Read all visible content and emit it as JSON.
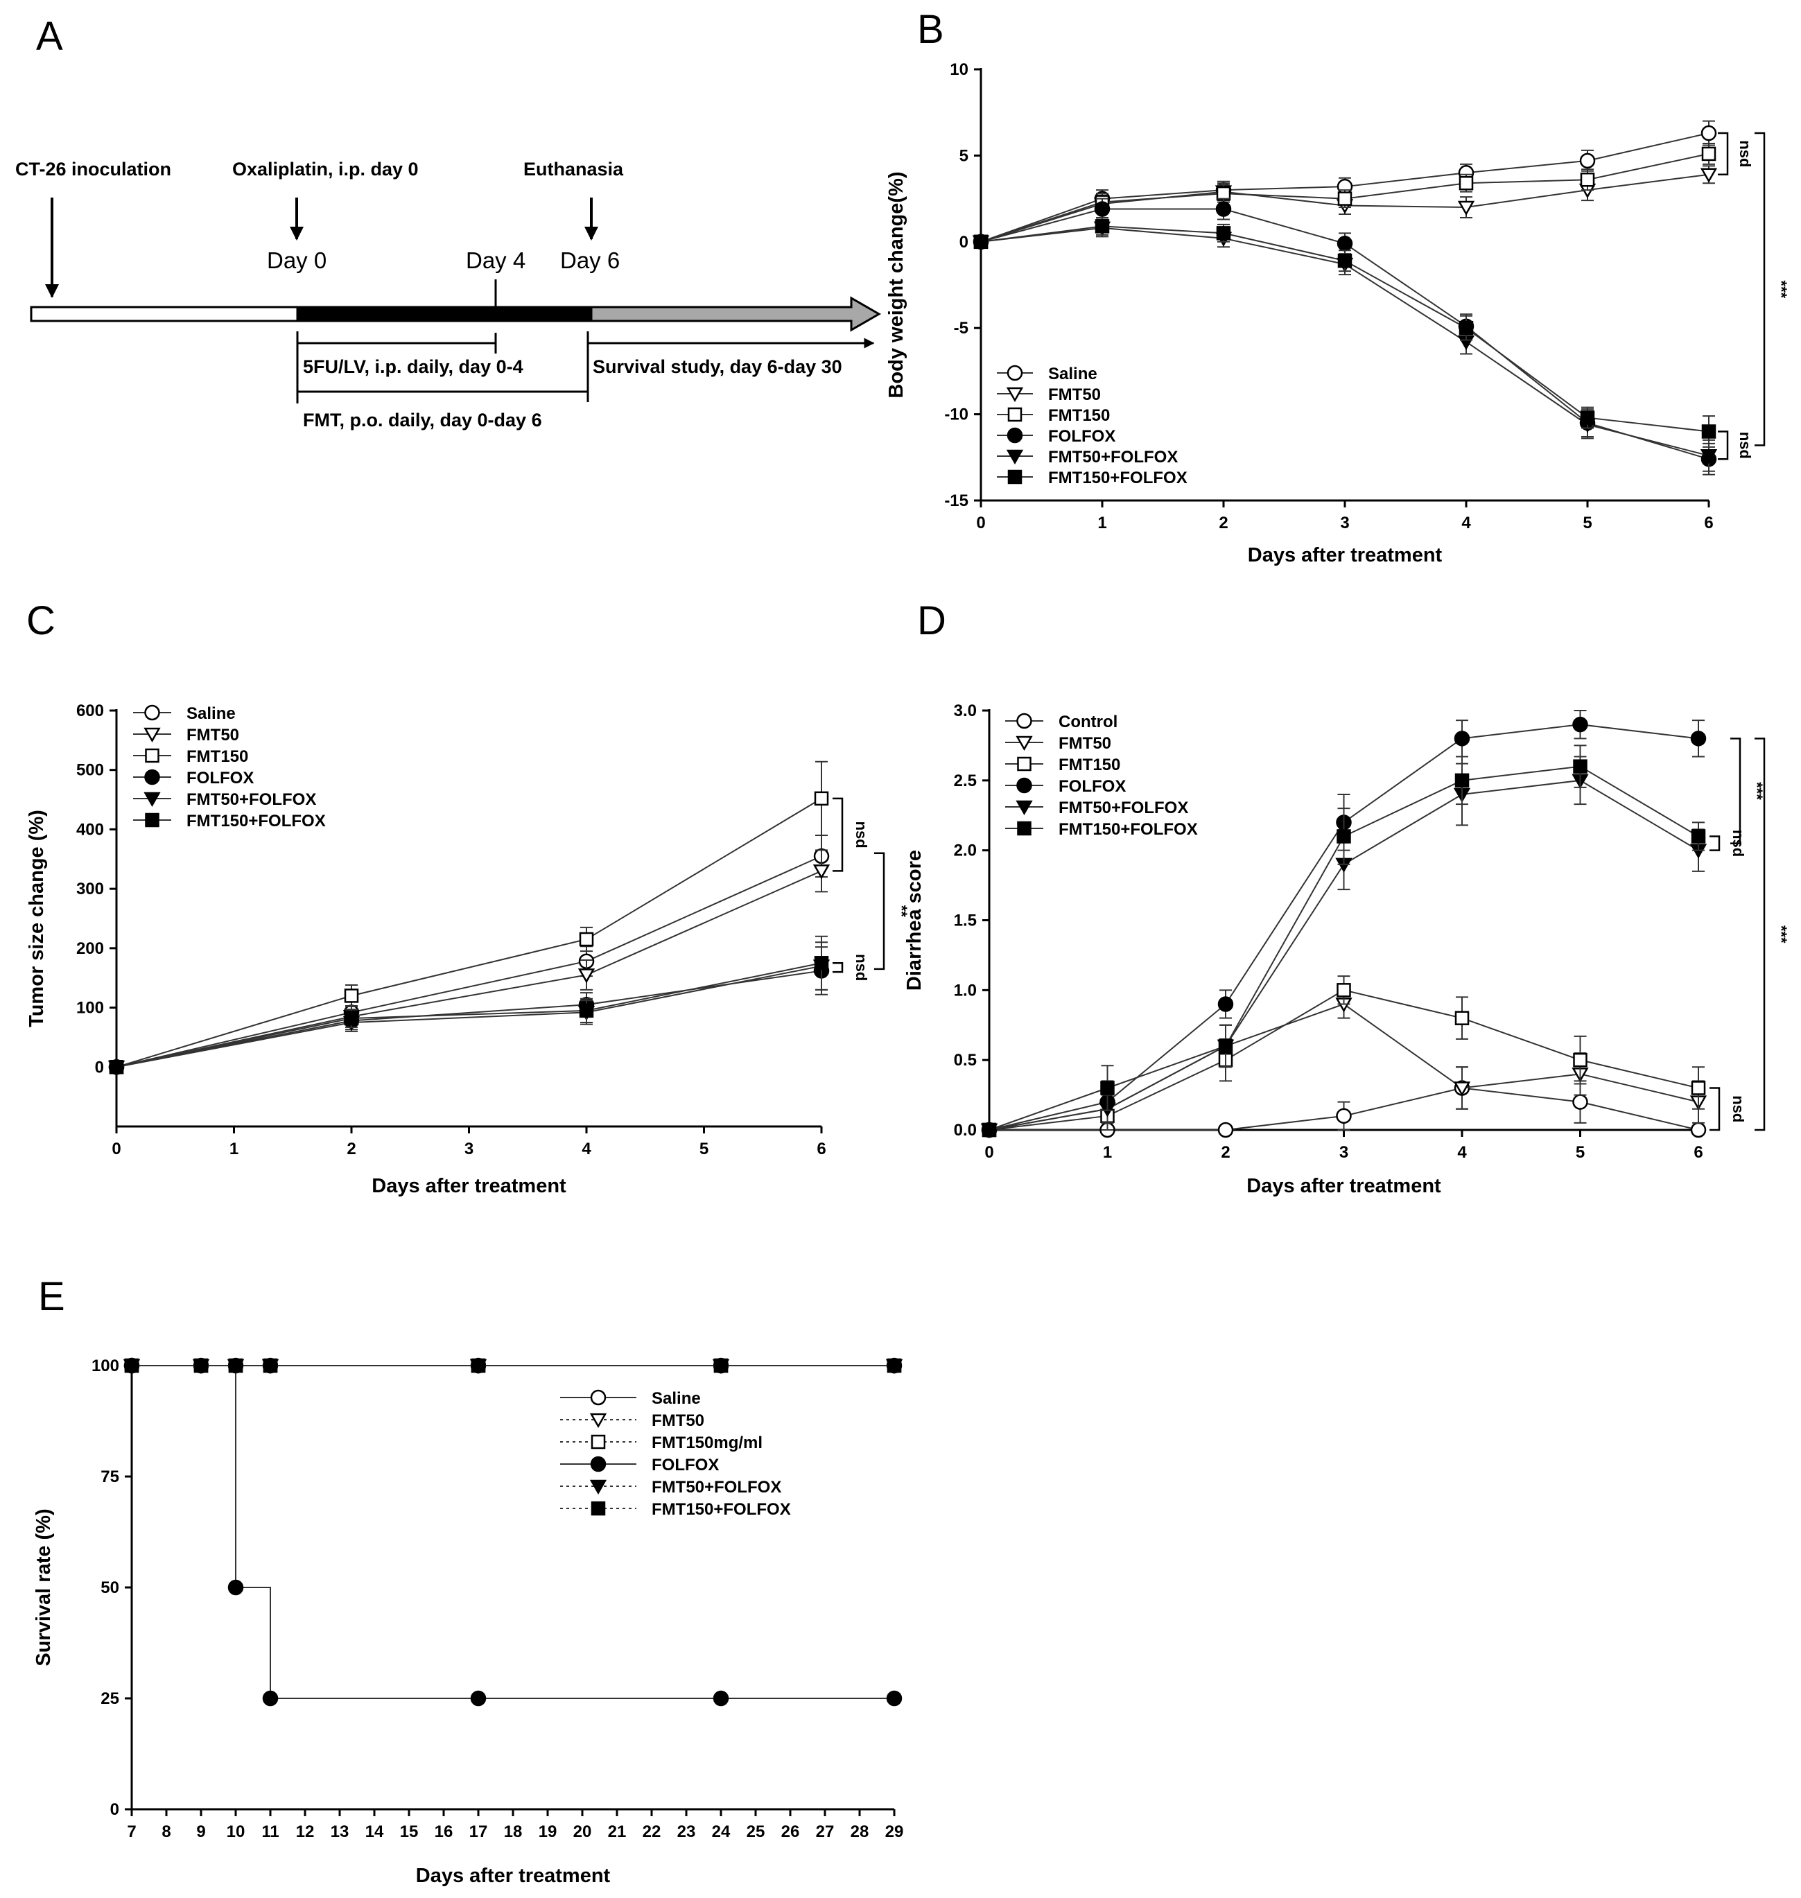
{
  "colors": {
    "ink": "#000000",
    "grey_arrow": "#a8a8a8",
    "paper": "#ffffff",
    "line": "#555555"
  },
  "panel_a": {
    "label": "A",
    "events": {
      "inoculation": "CT-26 inoculation",
      "oxaliplatin": "Oxaliplatin, i.p. day 0",
      "euthanasia": "Euthanasia"
    },
    "days": {
      "d0": "Day 0",
      "d4": "Day 4",
      "d6": "Day 6"
    },
    "regimens": {
      "fu": "5FU/LV, i.p. daily, day 0-4",
      "survival": "Survival study, day 6-day 30",
      "fmt": "FMT, p.o. daily, day 0-day 6"
    }
  },
  "chart_data": [
    {
      "panel": "B",
      "type": "line",
      "xlabel": "Days after treatment",
      "ylabel": "Body weight change(%)",
      "xlim": [
        0,
        6
      ],
      "ylim": [
        -15,
        10
      ],
      "xticks": [
        "0",
        "1",
        "2",
        "3",
        "4",
        "5",
        "6"
      ],
      "yticks": [
        "-15",
        "-10",
        "-5",
        "0",
        "5",
        "10"
      ],
      "legend": [
        "Saline",
        "FMT50",
        "FMT150",
        "FOLFOX",
        "FMT50+FOLFOX",
        "FMT150+FOLFOX"
      ],
      "x": [
        0,
        1,
        2,
        3,
        4,
        5,
        6
      ],
      "series": [
        {
          "name": "Saline",
          "marker": "circle-open",
          "values": [
            0,
            2.5,
            3.0,
            3.2,
            4.0,
            4.7,
            6.3
          ],
          "err": [
            0,
            0.5,
            0.5,
            0.5,
            0.5,
            0.6,
            0.7
          ]
        },
        {
          "name": "FMT50",
          "marker": "triangle-open",
          "values": [
            0,
            2.2,
            2.9,
            2.1,
            2.0,
            3.0,
            3.9
          ],
          "err": [
            0,
            0.5,
            0.5,
            0.5,
            0.6,
            0.6,
            0.5
          ]
        },
        {
          "name": "FMT150",
          "marker": "square-open",
          "values": [
            0,
            2.3,
            2.8,
            2.5,
            3.4,
            3.6,
            5.1
          ],
          "err": [
            0,
            0.5,
            0.5,
            0.5,
            0.5,
            0.6,
            0.6
          ]
        },
        {
          "name": "FOLFOX",
          "marker": "circle-filled",
          "values": [
            0,
            1.9,
            1.9,
            -0.1,
            -4.9,
            -10.5,
            -12.6
          ],
          "err": [
            0,
            0.6,
            0.6,
            0.6,
            0.7,
            0.8,
            0.9
          ]
        },
        {
          "name": "FMT50+FOLFOX",
          "marker": "triangle-filled",
          "values": [
            0,
            0.8,
            0.2,
            -1.3,
            -5.8,
            -10.6,
            -12.4
          ],
          "err": [
            0,
            0.5,
            0.5,
            0.6,
            0.7,
            0.8,
            0.9
          ]
        },
        {
          "name": "FMT150+FOLFOX",
          "marker": "square-filled",
          "values": [
            0,
            0.9,
            0.5,
            -1.1,
            -5.0,
            -10.2,
            -11.0
          ],
          "err": [
            0,
            0.5,
            0.5,
            0.6,
            0.7,
            0.6,
            0.9
          ]
        }
      ],
      "annotations": [
        "nsd",
        "***",
        "nsd"
      ]
    },
    {
      "panel": "C",
      "type": "line",
      "xlabel": "Days after treatment",
      "ylabel": "Tumor size change (%)",
      "xlim": [
        0,
        6
      ],
      "ylim": [
        -100,
        600
      ],
      "xticks": [
        "0",
        "1",
        "2",
        "3",
        "4",
        "5",
        "6"
      ],
      "yticks": [
        "0",
        "100",
        "200",
        "300",
        "400",
        "500",
        "600"
      ],
      "legend": [
        "Saline",
        "FMT50",
        "FMT150",
        "FOLFOX",
        "FMT50+FOLFOX",
        "FMT150+FOLFOX"
      ],
      "x": [
        0,
        2,
        4,
        6
      ],
      "series": [
        {
          "name": "Saline",
          "marker": "circle-open",
          "values": [
            0,
            92,
            178,
            355
          ],
          "err": [
            0,
            18,
            25,
            35
          ]
        },
        {
          "name": "FMT50",
          "marker": "triangle-open",
          "values": [
            0,
            85,
            155,
            330
          ],
          "err": [
            0,
            18,
            25,
            35
          ]
        },
        {
          "name": "FMT150",
          "marker": "square-open",
          "values": [
            0,
            120,
            215,
            452
          ],
          "err": [
            0,
            18,
            20,
            62
          ]
        },
        {
          "name": "FOLFOX",
          "marker": "circle-filled",
          "values": [
            0,
            78,
            105,
            162
          ],
          "err": [
            0,
            15,
            20,
            40
          ]
        },
        {
          "name": "FMT50+FOLFOX",
          "marker": "triangle-filled",
          "values": [
            0,
            75,
            92,
            170
          ],
          "err": [
            0,
            15,
            20,
            40
          ]
        },
        {
          "name": "FMT150+FOLFOX",
          "marker": "square-filled",
          "values": [
            0,
            82,
            95,
            175
          ],
          "err": [
            0,
            15,
            20,
            45
          ]
        }
      ],
      "annotations": [
        "nsd",
        "**",
        "nsd"
      ]
    },
    {
      "panel": "D",
      "type": "line",
      "xlabel": "Days after treatment",
      "ylabel": "Diarrhea score",
      "xlim": [
        0,
        6
      ],
      "ylim": [
        0,
        3.0
      ],
      "xticks": [
        "0",
        "1",
        "2",
        "3",
        "4",
        "5",
        "6"
      ],
      "yticks": [
        "0.0",
        "0.5",
        "1.0",
        "1.5",
        "2.0",
        "2.5",
        "3.0"
      ],
      "legend": [
        "Control",
        "FMT50",
        "FMT150",
        "FOLFOX",
        "FMT50+FOLFOX",
        "FMT150+FOLFOX"
      ],
      "x": [
        0,
        1,
        2,
        3,
        4,
        5,
        6
      ],
      "series": [
        {
          "name": "Control",
          "marker": "circle-open",
          "values": [
            0,
            0,
            0,
            0.1,
            0.3,
            0.2,
            0
          ],
          "err": [
            0,
            0,
            0,
            0.1,
            0.15,
            0.15,
            0
          ]
        },
        {
          "name": "FMT50",
          "marker": "triangle-open",
          "values": [
            0,
            0.15,
            0.6,
            0.9,
            0.3,
            0.4,
            0.2
          ],
          "err": [
            0,
            0.1,
            0.15,
            0.1,
            0.15,
            0.15,
            0.15
          ]
        },
        {
          "name": "FMT150",
          "marker": "square-open",
          "values": [
            0,
            0.1,
            0.5,
            1.0,
            0.8,
            0.5,
            0.3
          ],
          "err": [
            0,
            0.1,
            0.15,
            0.1,
            0.15,
            0.17,
            0.15
          ]
        },
        {
          "name": "FOLFOX",
          "marker": "circle-filled",
          "values": [
            0,
            0.2,
            0.9,
            2.2,
            2.8,
            2.9,
            2.8
          ],
          "err": [
            0,
            0.15,
            0.1,
            0.2,
            0.13,
            0.1,
            0.13
          ]
        },
        {
          "name": "FMT50+FOLFOX",
          "marker": "triangle-filled",
          "values": [
            0,
            0.15,
            0.6,
            1.9,
            2.4,
            2.5,
            2.0
          ],
          "err": [
            0,
            0.1,
            0.15,
            0.18,
            0.22,
            0.17,
            0.15
          ]
        },
        {
          "name": "FMT150+FOLFOX",
          "marker": "square-filled",
          "values": [
            0,
            0.3,
            0.6,
            2.1,
            2.5,
            2.6,
            2.1
          ],
          "err": [
            0,
            0.16,
            0.15,
            0.2,
            0.17,
            0.15,
            0.1
          ]
        }
      ],
      "annotations": [
        "***",
        "nsd",
        "***",
        "nsd"
      ]
    },
    {
      "panel": "E",
      "type": "line",
      "step": true,
      "xlabel": "Days after treatment",
      "ylabel": "Survival rate (%)",
      "xlim": [
        7,
        29
      ],
      "ylim": [
        0,
        100
      ],
      "xticks": [
        "7",
        "8",
        "9",
        "10",
        "11",
        "12",
        "13",
        "14",
        "15",
        "16",
        "17",
        "18",
        "19",
        "20",
        "21",
        "22",
        "23",
        "24",
        "25",
        "26",
        "27",
        "28",
        "29"
      ],
      "yticks": [
        "0",
        "25",
        "50",
        "75",
        "100"
      ],
      "legend": [
        "Saline",
        "FMT50",
        "FMT150mg/ml",
        "FOLFOX",
        "FMT50+FOLFOX",
        "FMT150+FOLFOX"
      ],
      "series": [
        {
          "name": "Saline",
          "marker": "circle-open",
          "x": [
            7,
            9,
            10,
            11,
            17,
            24,
            29
          ],
          "values": [
            100,
            100,
            100,
            100,
            100,
            100,
            100
          ]
        },
        {
          "name": "FMT50",
          "marker": "triangle-open",
          "x": [
            7,
            9,
            10,
            11,
            17,
            24,
            29
          ],
          "values": [
            100,
            100,
            100,
            100,
            100,
            100,
            100
          ]
        },
        {
          "name": "FMT150mg/ml",
          "marker": "square-open",
          "x": [
            7,
            9,
            10,
            11,
            17,
            24,
            29
          ],
          "values": [
            100,
            100,
            100,
            100,
            100,
            100,
            100
          ]
        },
        {
          "name": "FOLFOX",
          "marker": "circle-filled",
          "x": [
            7,
            10,
            11,
            17,
            24,
            29
          ],
          "values": [
            100,
            50,
            25,
            25,
            25,
            25
          ]
        },
        {
          "name": "FMT50+FOLFOX",
          "marker": "triangle-filled",
          "x": [
            7,
            9,
            10,
            11,
            17,
            24,
            29
          ],
          "values": [
            100,
            100,
            100,
            100,
            100,
            100,
            100
          ]
        },
        {
          "name": "FMT150+FOLFOX",
          "marker": "square-filled",
          "x": [
            7,
            9,
            10,
            11,
            17,
            24,
            29
          ],
          "values": [
            100,
            100,
            100,
            100,
            100,
            100,
            100
          ]
        }
      ],
      "annotations": []
    }
  ]
}
